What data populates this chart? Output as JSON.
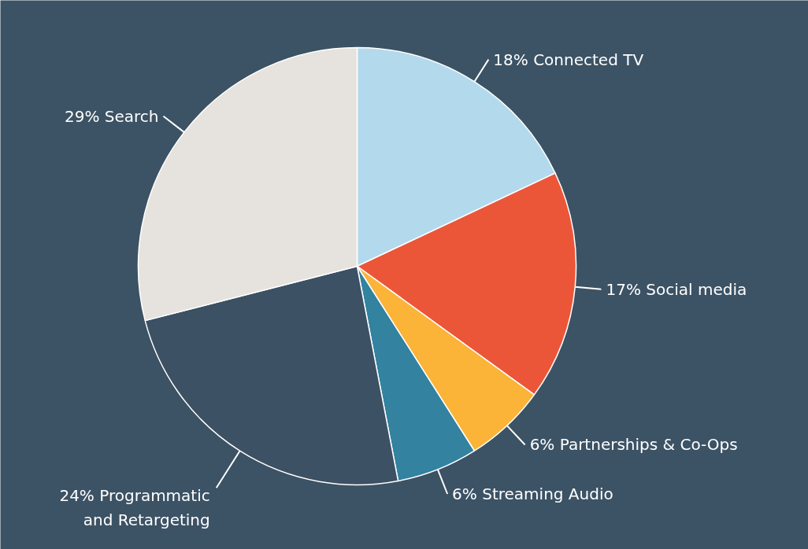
{
  "chart_data": {
    "type": "pie",
    "categories": [
      "Connected TV",
      "Social media",
      "Partnerships & Co-Ops",
      "Streaming Audio",
      "Programmatic and Retargeting",
      "Search"
    ],
    "values": [
      18,
      17,
      6,
      6,
      24,
      29
    ],
    "value_labels": [
      "18%",
      "17%",
      "6%",
      "6%",
      "24%",
      "29%"
    ],
    "colors": [
      "#b3d9ec",
      "#ec5638",
      "#fbb338",
      "#3282a0",
      "#3c5163",
      "#e6e2dd"
    ]
  }
}
